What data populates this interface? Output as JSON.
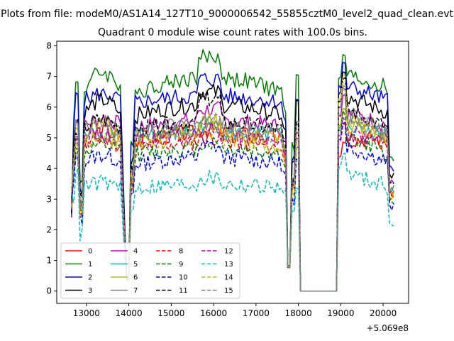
{
  "figure": {
    "suptitle": "Plots from file: modeM0/AS1A14_127T10_9000006542_55855cztM0_level2_quad_clean.evt",
    "title": "Quadrant 0 module wise count rates with 100.0s bins.",
    "offset_label": "+5.069e8"
  },
  "chart_data": {
    "type": "line",
    "title": "Quadrant 0 module wise count rates with 100.0s bins.",
    "xlabel": "",
    "ylabel": "",
    "x_offset": 506900000,
    "xlim": [
      12300,
      20600
    ],
    "ylim": [
      -0.4,
      8.15
    ],
    "xticks": [
      13000,
      14000,
      15000,
      16000,
      17000,
      18000,
      19000,
      20000
    ],
    "xtick_labels": [
      "13000",
      "14000",
      "15000",
      "16000",
      "17000",
      "18000",
      "19000",
      "20000"
    ],
    "yticks": [
      0,
      1,
      2,
      3,
      4,
      5,
      6,
      7,
      8
    ],
    "ytick_labels": [
      "0",
      "1",
      "2",
      "3",
      "4",
      "5",
      "6",
      "7",
      "8"
    ],
    "grid": false,
    "legend_position": "lower-left",
    "legend_columns": 4,
    "segments": [
      {
        "start": 12650,
        "end": 13950
      },
      {
        "start": 14000,
        "end": 17700
      },
      {
        "start": 17750,
        "end": 18050
      },
      {
        "start": 18100,
        "end": 18950
      },
      {
        "start": 19000,
        "end": 20250
      }
    ],
    "series": [
      {
        "name": "0",
        "color": "#ff0000",
        "dash": "solid",
        "level": 5.0,
        "peaks": [
          4.8,
          5.4,
          5.2,
          4.9
        ]
      },
      {
        "name": "1",
        "color": "#008000",
        "dash": "solid",
        "level": 6.6,
        "peaks": [
          6.8,
          7.5,
          7.9,
          7.7
        ]
      },
      {
        "name": "2",
        "color": "#0000ff",
        "dash": "solid",
        "level": 6.2,
        "peaks": [
          6.4,
          6.6,
          7.3,
          7.4
        ]
      },
      {
        "name": "3",
        "color": "#000000",
        "dash": "solid",
        "level": 5.8,
        "peaks": [
          5.6,
          6.5,
          6.6,
          7.2
        ]
      },
      {
        "name": "4",
        "color": "#bf00bf",
        "dash": "solid",
        "level": 5.4,
        "peaks": [
          5.0,
          5.8,
          6.1,
          6.4
        ]
      },
      {
        "name": "5",
        "color": "#00bfbf",
        "dash": "solid",
        "level": 5.1,
        "peaks": [
          4.5,
          5.2,
          5.6,
          5.9
        ]
      },
      {
        "name": "6",
        "color": "#bfbf00",
        "dash": "solid",
        "level": 5.0,
        "peaks": [
          5.3,
          5.7,
          5.5,
          6.0
        ]
      },
      {
        "name": "7",
        "color": "#808080",
        "dash": "solid",
        "level": 5.2,
        "peaks": [
          5.5,
          5.9,
          5.3,
          6.7
        ]
      },
      {
        "name": "8",
        "color": "#ff0000",
        "dash": "dashed",
        "level": 4.7,
        "peaks": [
          4.6,
          5.1,
          5.0,
          5.4
        ]
      },
      {
        "name": "9",
        "color": "#008000",
        "dash": "dashed",
        "level": 4.5,
        "peaks": [
          4.7,
          4.9,
          4.8,
          5.8
        ]
      },
      {
        "name": "10",
        "color": "#0000ff",
        "dash": "dashed",
        "level": 4.2,
        "peaks": [
          4.4,
          4.6,
          4.9,
          5.5
        ]
      },
      {
        "name": "11",
        "color": "#000000",
        "dash": "dashed",
        "level": 5.3,
        "peaks": [
          5.1,
          5.8,
          6.8,
          6.9
        ]
      },
      {
        "name": "12",
        "color": "#bf00bf",
        "dash": "dashed",
        "level": 4.9,
        "peaks": [
          4.9,
          5.2,
          5.4,
          5.6
        ]
      },
      {
        "name": "13",
        "color": "#00bfbf",
        "dash": "dashed",
        "level": 3.4,
        "peaks": [
          3.9,
          3.6,
          3.8,
          4.5
        ]
      },
      {
        "name": "14",
        "color": "#bfbf00",
        "dash": "dashed",
        "level": 4.8,
        "peaks": [
          4.8,
          5.2,
          5.3,
          7.0
        ]
      },
      {
        "name": "15",
        "color": "#808080",
        "dash": "dashed",
        "level": 5.1,
        "peaks": [
          5.0,
          5.5,
          5.6,
          6.6
        ]
      }
    ]
  }
}
